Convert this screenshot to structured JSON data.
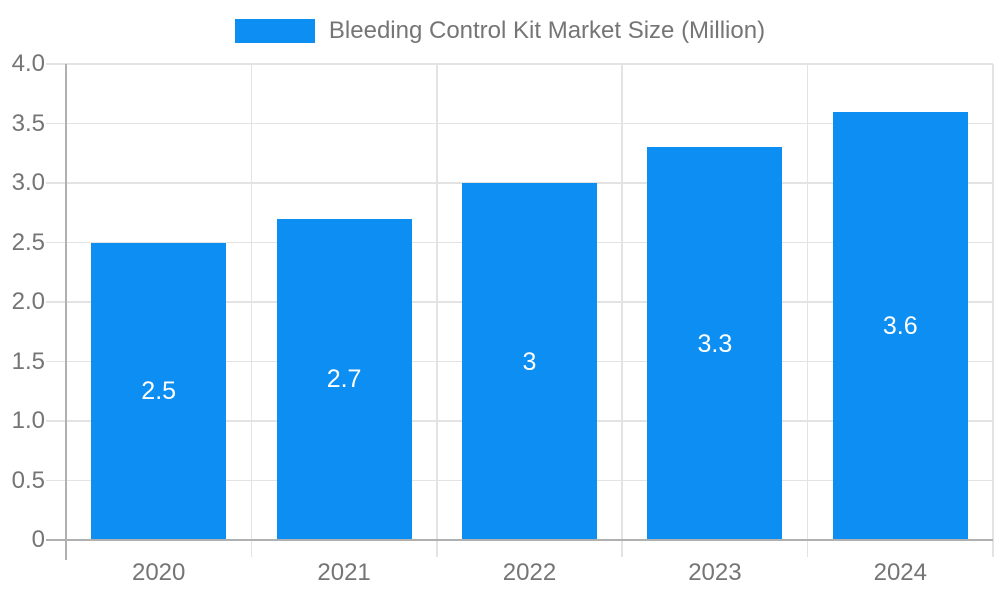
{
  "chart_data": {
    "type": "bar",
    "title": "Bleeding Control Kit Market Size (Million)",
    "legend": {
      "label": "Bleeding Control Kit Market Size (Million)",
      "position": "top-center",
      "swatch": "blue-rectangle"
    },
    "categories": [
      "2020",
      "2021",
      "2022",
      "2023",
      "2024"
    ],
    "values": [
      2.5,
      2.7,
      3,
      3.3,
      3.6
    ],
    "bar_labels": [
      "2.5",
      "2.7",
      "3",
      "3.3",
      "3.6"
    ],
    "bar_label_position": "middle-of-bar",
    "xlabel": "",
    "ylabel": "",
    "ylim": [
      0,
      4
    ],
    "ytick_step": 0.5,
    "ytick_labels": [
      "4.0",
      "3.5",
      "3.0",
      "2.5",
      "2.0",
      "1.5",
      "1.0",
      "0.5",
      "0"
    ],
    "grid": "horizontal and vertical category boundaries",
    "colors": {
      "bar": "#0d8ef2",
      "gridline": "#e3e3e3",
      "axis_line": "#b0b0b0",
      "label_text": "#757575",
      "bar_label_text": "#ffffff",
      "background": "#ffffff"
    }
  }
}
